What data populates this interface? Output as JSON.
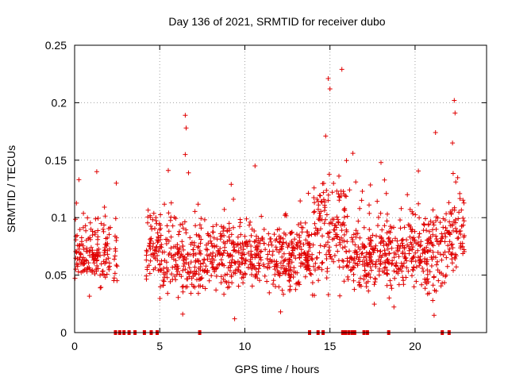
{
  "chart_data": {
    "type": "scatter",
    "title": "Day 136 of 2021, SRMTID for receiver dubo",
    "xlabel": "GPS time / hours",
    "ylabel": "SRMTID / TECUs",
    "xlim": [
      0,
      24.2
    ],
    "ylim": [
      0,
      0.25
    ],
    "grid": true,
    "marker": "+",
    "series_color": "#e00000",
    "x_ticks": [
      0,
      5,
      10,
      15,
      20
    ],
    "x_tick_labels": [
      "0",
      "5",
      "10",
      "15",
      "20"
    ],
    "y_ticks": [
      0,
      0.05,
      0.1,
      0.15,
      0.2,
      0.25
    ],
    "y_tick_labels": [
      "0",
      "0.05",
      "0.1",
      "0.15",
      "0.2",
      "0.25"
    ],
    "points_description": "approximately 1800 observations, values mostly 0.02-0.13 TECU",
    "density_profile": [
      {
        "x_start": 0.0,
        "x_end": 2.1,
        "y_center": 0.068,
        "y_spread": 0.018
      },
      {
        "x_start": 2.3,
        "x_end": 2.5,
        "y_center": 0.065,
        "y_spread": 0.02
      },
      {
        "x_start": 4.2,
        "x_end": 5.0,
        "y_center": 0.075,
        "y_spread": 0.02
      },
      {
        "x_start": 5.0,
        "x_end": 7.5,
        "y_center": 0.065,
        "y_spread": 0.022
      },
      {
        "x_start": 7.5,
        "x_end": 14.0,
        "y_center": 0.065,
        "y_spread": 0.018
      },
      {
        "x_start": 14.0,
        "x_end": 16.0,
        "y_center": 0.09,
        "y_spread": 0.03
      },
      {
        "x_start": 16.0,
        "x_end": 20.5,
        "y_center": 0.068,
        "y_spread": 0.02
      },
      {
        "x_start": 20.5,
        "x_end": 22.0,
        "y_center": 0.07,
        "y_spread": 0.025
      },
      {
        "x_start": 22.0,
        "x_end": 22.9,
        "y_center": 0.085,
        "y_spread": 0.025
      }
    ],
    "notable_points": [
      {
        "x": 15.7,
        "y": 0.229
      },
      {
        "x": 14.9,
        "y": 0.221
      },
      {
        "x": 15.0,
        "y": 0.212
      },
      {
        "x": 22.3,
        "y": 0.202
      },
      {
        "x": 22.35,
        "y": 0.191
      },
      {
        "x": 6.5,
        "y": 0.189
      },
      {
        "x": 6.55,
        "y": 0.178
      },
      {
        "x": 21.2,
        "y": 0.174
      },
      {
        "x": 14.75,
        "y": 0.171
      },
      {
        "x": 22.2,
        "y": 0.165
      },
      {
        "x": 16.35,
        "y": 0.156
      },
      {
        "x": 6.5,
        "y": 0.155
      },
      {
        "x": 18.0,
        "y": 0.148
      },
      {
        "x": 10.6,
        "y": 0.145
      },
      {
        "x": 1.3,
        "y": 0.14
      },
      {
        "x": 5.5,
        "y": 0.141
      },
      {
        "x": 0.25,
        "y": 0.133
      },
      {
        "x": 2.45,
        "y": 0.13
      },
      {
        "x": 9.2,
        "y": 0.129
      },
      {
        "x": 9.4,
        "y": 0.012
      },
      {
        "x": 12.1,
        "y": 0.018
      }
    ],
    "zero_markers_x": [
      2.4,
      2.65,
      2.9,
      3.2,
      3.55,
      4.1,
      4.5,
      4.85,
      7.35,
      13.8,
      14.3,
      14.6,
      15.75,
      15.9,
      16.1,
      16.3,
      16.45,
      17.0,
      17.2,
      18.45,
      21.6,
      22.0
    ]
  }
}
